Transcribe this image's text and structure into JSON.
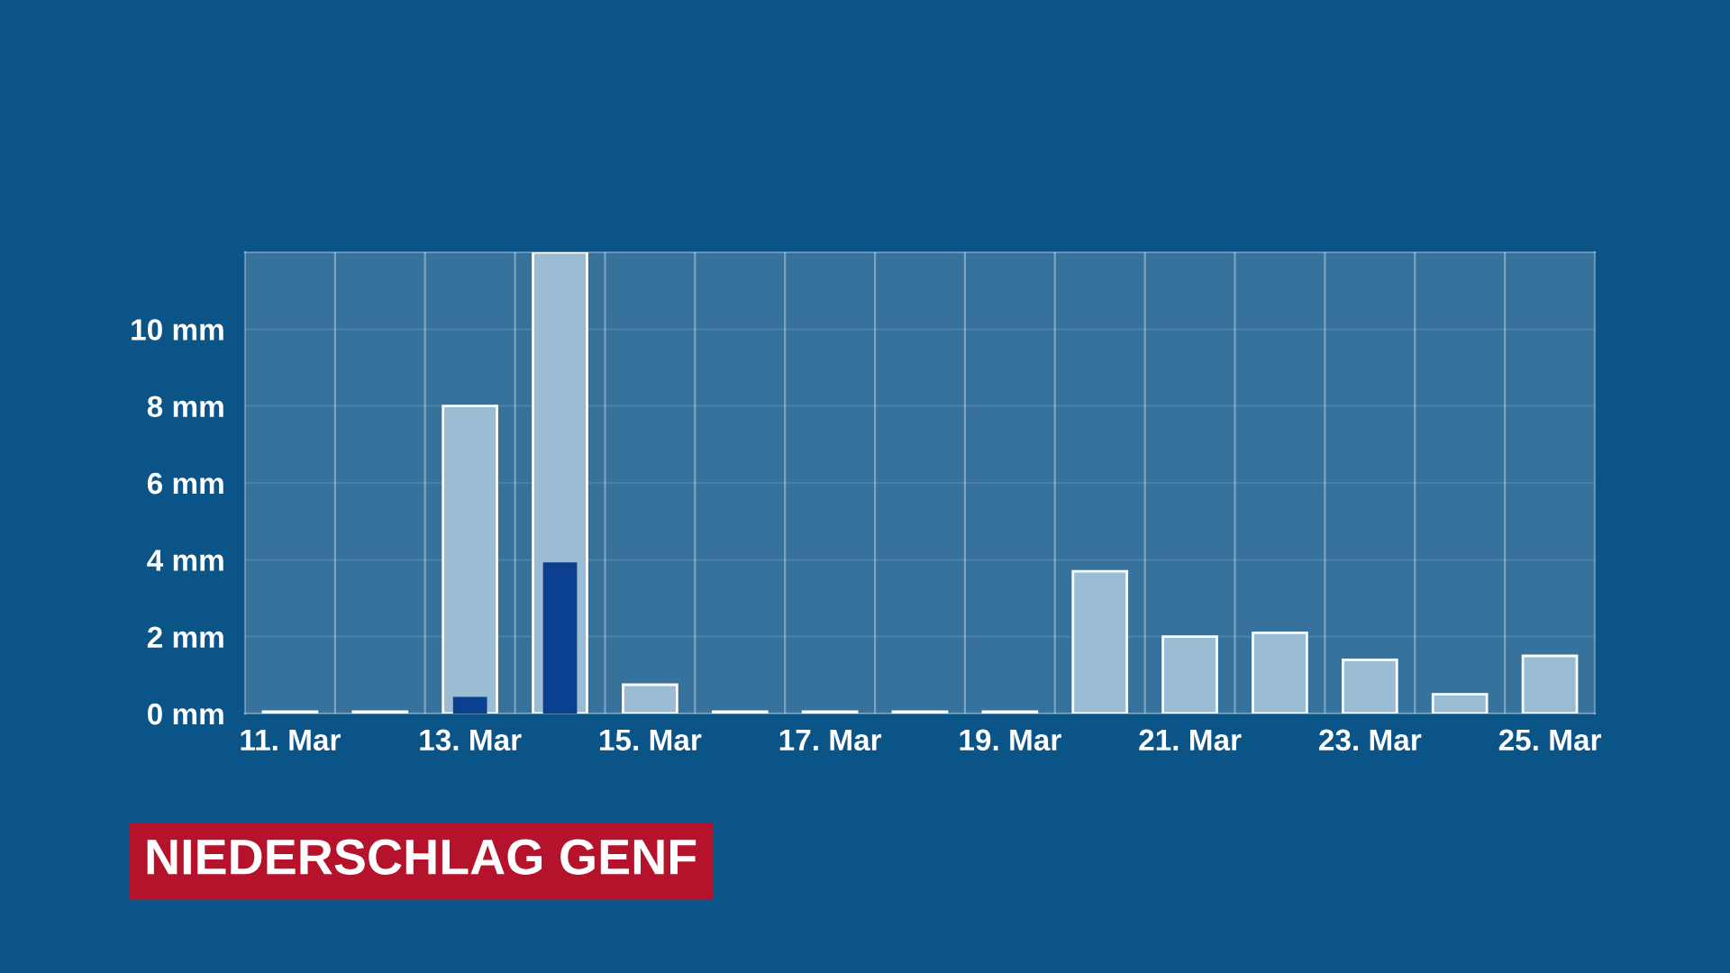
{
  "chart_data": {
    "type": "bar",
    "title": "NIEDERSCHLAG GENF",
    "categories": [
      "11. Mar",
      null,
      "13. Mar",
      null,
      "15. Mar",
      null,
      "17. Mar",
      null,
      "19. Mar",
      null,
      "21. Mar",
      null,
      "23. Mar",
      null,
      "25. Mar"
    ],
    "series": [
      {
        "color": "#9bbdd4",
        "values": [
          0.05,
          0.05,
          8.0,
          12.0,
          0.75,
          0.05,
          0.05,
          0.05,
          0.05,
          3.7,
          2.0,
          2.1,
          1.4,
          0.5,
          1.5
        ]
      },
      {
        "color": "#0b3f8f",
        "values": [
          null,
          null,
          0.4,
          3.9,
          null,
          null,
          null,
          null,
          null,
          null,
          null,
          null,
          null,
          null,
          null
        ]
      }
    ],
    "ylim": [
      0,
      12
    ],
    "yticks": [
      {
        "value": 0,
        "label": "0 mm"
      },
      {
        "value": 2,
        "label": "2 mm"
      },
      {
        "value": 4,
        "label": "4 mm"
      },
      {
        "value": 6,
        "label": "6 mm"
      },
      {
        "value": 8,
        "label": "8 mm"
      },
      {
        "value": 10,
        "label": "10 mm"
      }
    ],
    "grid": true,
    "legend": false
  }
}
